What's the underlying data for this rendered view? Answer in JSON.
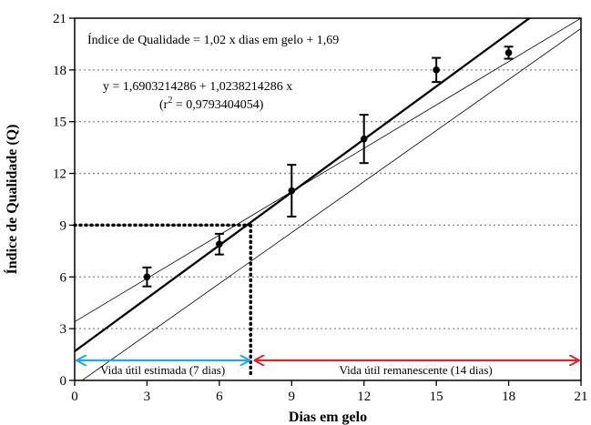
{
  "chart_data": {
    "type": "scatter",
    "xlabel": "Dias em gelo",
    "ylabel": "Índice de Qualidade (Q)",
    "xlim": [
      0,
      21
    ],
    "ylim": [
      0,
      21
    ],
    "xticks": [
      0,
      3,
      6,
      9,
      12,
      15,
      18,
      21
    ],
    "yticks": [
      0,
      3,
      6,
      9,
      12,
      15,
      18,
      21
    ],
    "grid": "horizontal dotted",
    "points": [
      {
        "x": 3,
        "y": 6.0,
        "err": 0.55
      },
      {
        "x": 6,
        "y": 7.9,
        "err": 0.6
      },
      {
        "x": 9,
        "y": 11.0,
        "err": 1.5
      },
      {
        "x": 12,
        "y": 14.0,
        "err": 1.4
      },
      {
        "x": 15,
        "y": 18.0,
        "err": 0.7
      },
      {
        "x": 18,
        "y": 19.0,
        "err": 0.35
      }
    ],
    "regression": {
      "intercept": 1.6903214286,
      "slope": 1.0238214286
    },
    "confidence_band": {
      "lower": [
        [
          0,
          -0.3
        ],
        [
          21,
          20.4
        ]
      ],
      "upper": [
        [
          0,
          3.4
        ],
        [
          21,
          21.0
        ]
      ]
    },
    "reference": {
      "y": 9,
      "x": 7.3
    },
    "annotations": {
      "equation_main": "Índice de Qualidade = 1,02 x dias em gelo + 1,69",
      "equation_fit": "y = 1,6903214286 + 1,0238214286 x",
      "r2_prefix": "(r",
      "r2_sup": "2",
      "r2_suffix": " = 0,9793404054)"
    },
    "zones": [
      {
        "label": "Vida útil estimada (7 dias)",
        "from": 0,
        "to": 7.3,
        "color": "#1fa8e0"
      },
      {
        "label": "Vida útil remanescente (14 dias)",
        "from": 7.3,
        "to": 21,
        "color": "#d6262e"
      }
    ],
    "colors": {
      "line": "#000000",
      "grid": "#888888",
      "band": "#000000"
    }
  }
}
